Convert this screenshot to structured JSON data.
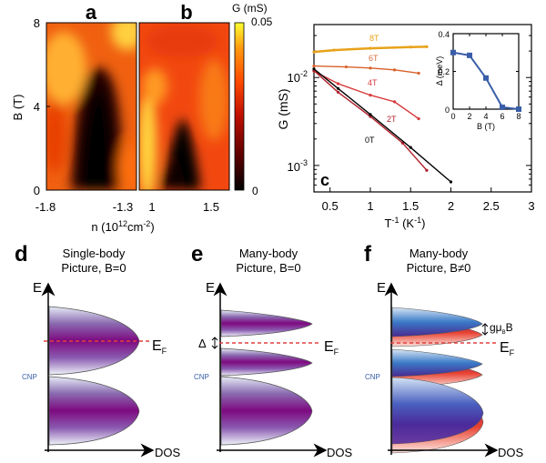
{
  "panels": {
    "a": {
      "letter": "a",
      "ylabel": "B (T)",
      "yticks": [
        "0",
        "4",
        "8"
      ],
      "xticks": [
        "-1.8",
        "-1.3"
      ]
    },
    "b": {
      "letter": "b",
      "xticks": [
        "1",
        "1.5"
      ]
    },
    "ab_xlabel": "n (10",
    "ab_xlabel_sup": "12",
    "ab_xlabel_mid": "cm",
    "ab_xlabel_sup2": "-2",
    "ab_xlabel_end": ")",
    "colorbar": {
      "label": "G (mS)",
      "max": "0.05",
      "min": "0",
      "colors": [
        "#000000",
        "#5a0000",
        "#c01000",
        "#ff4a00",
        "#ff9a10",
        "#ffff30"
      ]
    },
    "c": {
      "letter": "c",
      "ylabel": "G (mS)",
      "xlabel_base": "T",
      "xlabel_sup": "-1",
      "xlabel_unit": " (K",
      "xlabel_unit_sup": "-1",
      "xlabel_end": ")",
      "yticks": [
        {
          "base": "10",
          "exp": "-2"
        },
        {
          "base": "10",
          "exp": "-3"
        }
      ],
      "xticks": [
        "0.5",
        "1",
        "1.5",
        "2",
        "2.5",
        "3"
      ],
      "curve_labels": [
        "8T",
        "6T",
        "4T",
        "2T",
        "0T"
      ],
      "curve_colors": [
        "#e8a21a",
        "#d8602a",
        "#d8383a",
        "#b0202a",
        "#000000"
      ]
    },
    "inset": {
      "ylabel": "Δ (meV)",
      "xlabel": "B (T)",
      "yticks": [
        "0",
        "0.2",
        "0.4"
      ],
      "xticks": [
        "0",
        "2",
        "4",
        "6",
        "8"
      ],
      "color": "#3a5ea8"
    },
    "d": {
      "letter": "d",
      "title1": "Single-body",
      "title2": "Picture, B=0"
    },
    "e": {
      "letter": "e",
      "title1": "Many-body",
      "title2": "Picture, B=0",
      "gap_label": "Δ"
    },
    "f": {
      "letter": "f",
      "title1": "Many-body",
      "title2": "Picture, B≠0",
      "zeeman_label": "gμ",
      "zeeman_sub": "B",
      "zeeman_end": "B"
    },
    "common": {
      "e_axis": "E",
      "dos_axis": "DOS",
      "ef_label": "E",
      "ef_sub": "F",
      "cnp_label": "CNP"
    }
  },
  "chart_data": [
    {
      "type": "heatmap",
      "panel": "a",
      "title": "a",
      "xlabel": "n (10^12 cm^-2)",
      "ylabel": "B (T)",
      "xlim": [
        -1.8,
        -1.25
      ],
      "ylim": [
        0,
        8
      ],
      "xticks": [
        -1.8,
        -1.3
      ],
      "yticks": [
        0,
        4,
        8
      ],
      "colorbar": {
        "label": "G (mS)",
        "range": [
          0,
          0.05
        ]
      },
      "description": "Dark (low G) region centered near n=-1.45 extending from B=0 up to ~6 T"
    },
    {
      "type": "heatmap",
      "panel": "b",
      "title": "b",
      "xlabel": "n (10^12 cm^-2)",
      "ylabel": "B (T)",
      "xlim": [
        0.95,
        1.75
      ],
      "ylim": [
        0,
        8
      ],
      "xticks": [
        1,
        1.5
      ],
      "colorbar": {
        "label": "G (mS)",
        "range": [
          0,
          0.05
        ]
      },
      "description": "Dark (low G) region centered near n=1.3 extending from B=0 up to ~3.5 T"
    },
    {
      "type": "scatter",
      "panel": "c",
      "title": "c",
      "xlabel": "T^-1 (K^-1)",
      "ylabel": "G (mS)",
      "xlim": [
        0.3,
        3.0
      ],
      "ylim": [
        0.0005,
        0.04
      ],
      "yscale": "log",
      "xticks": [
        0.5,
        1,
        1.5,
        2,
        2.5,
        3
      ],
      "yticks": [
        0.001,
        0.01
      ],
      "series": [
        {
          "name": "8T",
          "x": [
            0.3,
            0.55,
            1.0,
            1.5,
            1.7
          ],
          "y": [
            0.0195,
            0.0205,
            0.0215,
            0.0222,
            0.0224
          ]
        },
        {
          "name": "6T",
          "x": [
            0.3,
            0.7,
            1.0,
            1.3,
            1.6
          ],
          "y": [
            0.0135,
            0.0132,
            0.0128,
            0.0122,
            0.0112
          ]
        },
        {
          "name": "4T",
          "x": [
            0.3,
            0.6,
            1.0,
            1.3,
            1.6
          ],
          "y": [
            0.0118,
            0.0085,
            0.0063,
            0.0053,
            0.0034
          ]
        },
        {
          "name": "2T",
          "x": [
            0.3,
            0.6,
            1.0,
            1.4,
            1.7
          ],
          "y": [
            0.012,
            0.0068,
            0.0036,
            0.0018,
            0.00088
          ]
        },
        {
          "name": "0T",
          "x": [
            0.3,
            0.6,
            1.0,
            1.5,
            2.0
          ],
          "y": [
            0.0125,
            0.0075,
            0.0038,
            0.0016,
            0.00065
          ]
        }
      ]
    },
    {
      "type": "line",
      "panel": "c-inset",
      "xlabel": "B (T)",
      "ylabel": "Δ (meV)",
      "xlim": [
        0,
        8
      ],
      "ylim": [
        0,
        0.4
      ],
      "xticks": [
        0,
        2,
        4,
        6,
        8
      ],
      "yticks": [
        0,
        0.2,
        0.4
      ],
      "x": [
        0,
        2,
        4,
        6,
        8
      ],
      "y": [
        0.3,
        0.285,
        0.165,
        0.01,
        0.0
      ]
    }
  ]
}
